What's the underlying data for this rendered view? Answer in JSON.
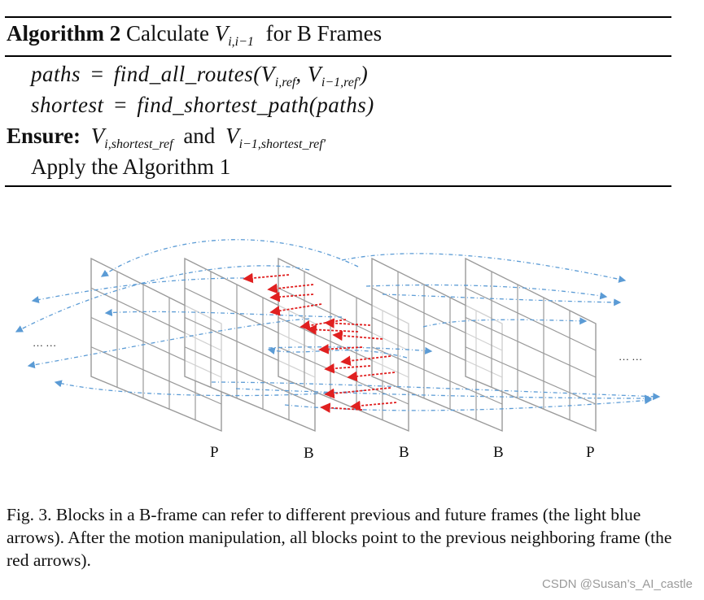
{
  "algorithm": {
    "label": "Algorithm 2",
    "title_prefix": "Calculate",
    "title_var": "V",
    "title_sub": "i,i−1",
    "title_suffix": "for B Frames",
    "lines": [
      {
        "lhs": "paths",
        "eq": "=",
        "rhs": "find_all_routes(V",
        "sub1": "i,ref",
        "mid": ", V",
        "sub2": "i−1,ref′",
        "end": ")"
      },
      {
        "lhs": "shortest",
        "eq": "=",
        "rhs": "find_shortest_path(paths)"
      }
    ],
    "ensure": {
      "keyword": "Ensure:",
      "var1": "V",
      "sub1": "i,shortest_ref",
      "conj": "and",
      "var2": "V",
      "sub2": "i−1,shortest_ref′"
    },
    "apply": "Apply the Algorithm 1"
  },
  "figure": {
    "frame_labels": [
      "P",
      "B",
      "B",
      "B",
      "P"
    ],
    "ellipsis_left": "… …",
    "ellipsis_right": "… …",
    "colors": {
      "grid": "#9a9a9a",
      "blue_arrow": "#5b9bd5",
      "red_arrow": "#e02020"
    }
  },
  "caption": {
    "text": "Fig. 3.   Blocks in a B-frame can refer to different previous and future frames (the light blue arrows). After the motion manipulation, all blocks point to the previous neighboring frame (the red arrows)."
  },
  "watermark": "CSDN @Susan’s_AI_castle"
}
